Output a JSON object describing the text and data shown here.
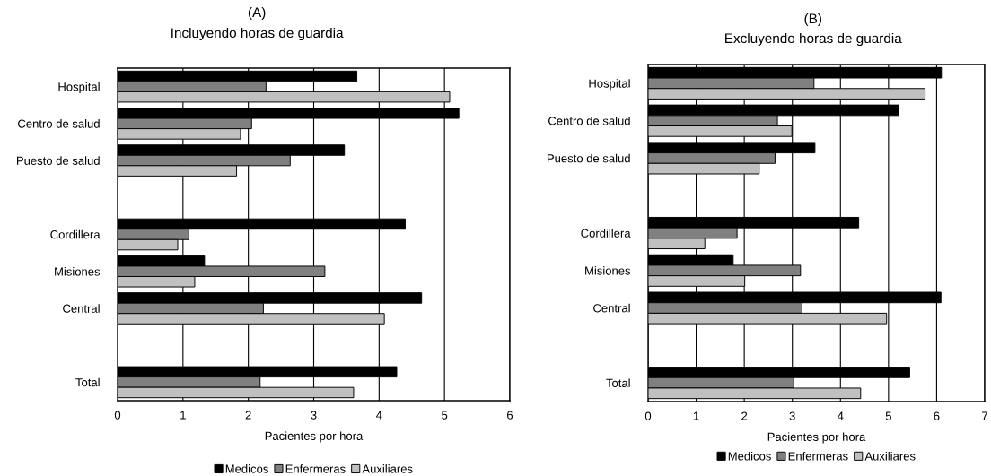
{
  "chart_data": [
    {
      "type": "bar",
      "orientation": "horizontal",
      "title": "(A)",
      "subtitle": "Incluyendo horas de guardia",
      "xlabel": "Pacientes por hora",
      "categories": [
        "Hospital",
        "Centro de salud",
        "Puesto de salud",
        null,
        "Cordillera",
        "Misiones",
        "Central",
        null,
        "Total"
      ],
      "series": [
        {
          "name": "Medicos",
          "color": "#000000",
          "values": [
            3.66,
            5.22,
            3.47,
            null,
            4.4,
            1.33,
            4.65,
            null,
            4.27
          ]
        },
        {
          "name": "Enfermeras",
          "color": "#808080",
          "values": [
            2.27,
            2.05,
            2.64,
            null,
            1.09,
            3.17,
            2.23,
            null,
            2.18
          ]
        },
        {
          "name": "Auxiliares",
          "color": "#c0c0c0",
          "values": [
            5.08,
            1.88,
            1.82,
            null,
            0.92,
            1.18,
            4.08,
            null,
            3.61
          ]
        }
      ],
      "xlim": [
        0,
        6
      ],
      "xticks": [
        0,
        1,
        2,
        3,
        4,
        5,
        6
      ],
      "grid": "x",
      "legend": "bottom"
    },
    {
      "type": "bar",
      "orientation": "horizontal",
      "title": "(B)",
      "subtitle": "Excluyendo horas de guardia",
      "xlabel": "Pacientes por hora",
      "categories": [
        "Hospital",
        "Centro de salud",
        "Puesto de salud",
        null,
        "Cordillera",
        "Misiones",
        "Central",
        null,
        "Total"
      ],
      "series": [
        {
          "name": "Medicos",
          "color": "#000000",
          "values": [
            6.1,
            5.21,
            3.47,
            null,
            4.38,
            1.77,
            6.09,
            null,
            5.44
          ]
        },
        {
          "name": "Enfermeras",
          "color": "#808080",
          "values": [
            3.45,
            2.69,
            2.64,
            null,
            1.85,
            3.17,
            3.2,
            null,
            3.03
          ]
        },
        {
          "name": "Auxiliares",
          "color": "#c0c0c0",
          "values": [
            5.76,
            2.99,
            2.31,
            null,
            1.18,
            2.01,
            4.96,
            null,
            4.42
          ]
        }
      ],
      "xlim": [
        0,
        7
      ],
      "xticks": [
        0,
        1,
        2,
        3,
        4,
        5,
        6,
        7
      ],
      "grid": "x",
      "legend": "bottom"
    }
  ]
}
